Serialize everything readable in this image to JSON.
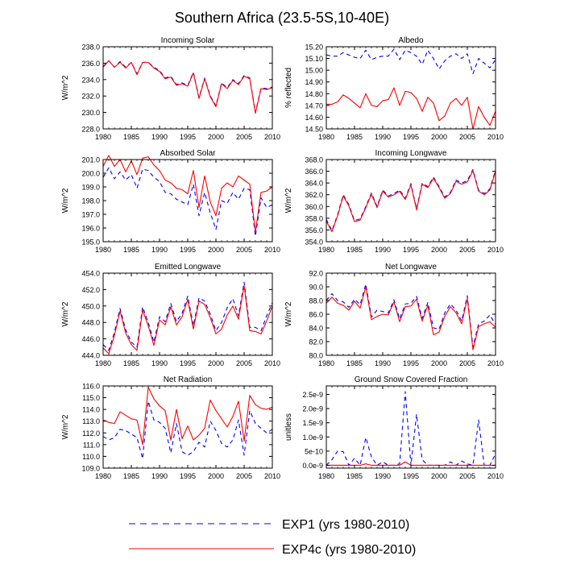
{
  "title": "Southern Africa (23.5-5S,10-40E)",
  "legend": [
    {
      "label": "EXP1 (yrs 1980-2010)",
      "color": "#0000ff",
      "dashed": true
    },
    {
      "label": "EXP4c (yrs 1980-2010)",
      "color": "#ff0000",
      "dashed": false
    }
  ],
  "chart_data": [
    {
      "type": "line",
      "title": "Incoming Solar",
      "ylabel": "W/m^2",
      "xlim": [
        1980,
        2010
      ],
      "ylim": [
        228,
        238
      ],
      "xticks": [
        1980,
        1985,
        1990,
        1995,
        2000,
        2005,
        2010
      ],
      "yticks": [
        228,
        230,
        232,
        234,
        236,
        238
      ],
      "ytick_labels": [
        "228.0",
        "230.0",
        "232.0",
        "234.0",
        "236.0",
        "238.0"
      ],
      "x": [
        1980,
        1981,
        1982,
        1983,
        1984,
        1985,
        1986,
        1987,
        1988,
        1989,
        1990,
        1991,
        1992,
        1993,
        1994,
        1995,
        1996,
        1997,
        1998,
        1999,
        2000,
        2001,
        2002,
        2003,
        2004,
        2005,
        2006,
        2007,
        2008,
        2009,
        2010
      ],
      "series": [
        {
          "name": "EXP1 (yrs 1980-2010)",
          "values": [
            235.6,
            236.3,
            235.5,
            236.2,
            235.5,
            236.1,
            234.7,
            236.1,
            236.1,
            235.5,
            235.1,
            234.2,
            234.4,
            233.4,
            233.6,
            233.3,
            234.9,
            231.8,
            234.2,
            232.0,
            230.8,
            233.6,
            233.0,
            234.0,
            233.5,
            234.5,
            234.2,
            230.0,
            233.0,
            232.9,
            233.1
          ]
        },
        {
          "name": "EXP4c (yrs 1980-2010)",
          "values": [
            235.5,
            236.3,
            235.5,
            236.1,
            235.4,
            236.1,
            234.6,
            236.1,
            236.1,
            235.4,
            235.0,
            234.1,
            234.3,
            233.3,
            233.5,
            233.2,
            234.8,
            231.7,
            234.1,
            231.9,
            230.7,
            233.5,
            232.9,
            233.9,
            233.4,
            234.4,
            234.1,
            229.9,
            232.9,
            232.8,
            233.0
          ]
        }
      ]
    },
    {
      "type": "line",
      "title": "Albedo",
      "ylabel": "% reflected",
      "xlim": [
        1980,
        2010
      ],
      "ylim": [
        14.5,
        15.2
      ],
      "xticks": [
        1980,
        1985,
        1990,
        1995,
        2000,
        2005,
        2010
      ],
      "yticks": [
        14.5,
        14.6,
        14.7,
        14.8,
        14.9,
        15.0,
        15.1,
        15.2
      ],
      "ytick_labels": [
        "14.50",
        "14.60",
        "14.70",
        "14.80",
        "14.90",
        "15.00",
        "15.10",
        "15.20"
      ],
      "x": [
        1980,
        1981,
        1982,
        1983,
        1984,
        1985,
        1986,
        1987,
        1988,
        1989,
        1990,
        1991,
        1992,
        1993,
        1994,
        1995,
        1996,
        1997,
        1998,
        1999,
        2000,
        2001,
        2002,
        2003,
        2004,
        2005,
        2006,
        2007,
        2008,
        2009,
        2010
      ],
      "series": [
        {
          "name": "EXP1 (yrs 1980-2010)",
          "values": [
            15.13,
            15.12,
            15.12,
            15.15,
            15.13,
            15.11,
            15.1,
            15.17,
            15.09,
            15.11,
            15.12,
            15.12,
            15.18,
            15.09,
            15.17,
            15.15,
            15.12,
            15.05,
            15.17,
            15.1,
            15.01,
            15.08,
            15.12,
            15.14,
            15.1,
            15.14,
            14.97,
            15.1,
            15.06,
            15.02,
            15.09
          ]
        },
        {
          "name": "EXP4c (yrs 1980-2010)",
          "values": [
            14.71,
            14.71,
            14.73,
            14.79,
            14.76,
            14.72,
            14.68,
            14.8,
            14.7,
            14.69,
            14.74,
            14.75,
            14.85,
            14.7,
            14.82,
            14.81,
            14.76,
            14.65,
            14.77,
            14.72,
            14.57,
            14.61,
            14.72,
            14.76,
            14.7,
            14.77,
            14.5,
            14.69,
            14.6,
            14.53,
            14.65
          ]
        }
      ]
    },
    {
      "type": "line",
      "title": "Absorbed Solar",
      "ylabel": "W/m^2",
      "xlim": [
        1980,
        2010
      ],
      "ylim": [
        195,
        201
      ],
      "xticks": [
        1980,
        1985,
        1990,
        1995,
        2000,
        2005,
        2010
      ],
      "yticks": [
        195,
        196,
        197,
        198,
        199,
        200,
        201
      ],
      "ytick_labels": [
        "195.0",
        "196.0",
        "197.0",
        "198.0",
        "199.0",
        "200.0",
        "201.0"
      ],
      "x": [
        1980,
        1981,
        1982,
        1983,
        1984,
        1985,
        1986,
        1987,
        1988,
        1989,
        1990,
        1991,
        1992,
        1993,
        1994,
        1995,
        1996,
        1997,
        1998,
        1999,
        2000,
        2001,
        2002,
        2003,
        2004,
        2005,
        2006,
        2007,
        2008,
        2009,
        2010
      ],
      "series": [
        {
          "name": "EXP1 (yrs 1980-2010)",
          "values": [
            199.7,
            200.4,
            199.6,
            200.1,
            199.5,
            199.9,
            198.9,
            200.3,
            200.2,
            199.7,
            199.4,
            198.6,
            198.5,
            198.1,
            197.9,
            197.7,
            199.2,
            196.9,
            198.6,
            197.1,
            195.9,
            198.0,
            197.8,
            198.6,
            198.1,
            198.9,
            198.8,
            195.4,
            198.2,
            197.5,
            197.7
          ]
        },
        {
          "name": "EXP4c (yrs 1980-2010)",
          "values": [
            200.5,
            201.3,
            200.5,
            201.0,
            200.1,
            200.9,
            199.9,
            201.1,
            201.2,
            200.6,
            200.2,
            199.5,
            199.3,
            198.9,
            198.8,
            198.5,
            200.2,
            197.5,
            199.8,
            197.9,
            196.9,
            198.9,
            199.3,
            199.0,
            199.8,
            199.5,
            199.2,
            195.7,
            198.6,
            198.7,
            199.0
          ]
        }
      ]
    },
    {
      "type": "line",
      "title": "Incoming Longwave",
      "ylabel": "W/m^2",
      "xlim": [
        1980,
        2010
      ],
      "ylim": [
        354,
        368
      ],
      "xticks": [
        1980,
        1985,
        1990,
        1995,
        2000,
        2005,
        2010
      ],
      "yticks": [
        354,
        356,
        358,
        360,
        362,
        364,
        366,
        368
      ],
      "ytick_labels": [
        "354.0",
        "356.0",
        "358.0",
        "360.0",
        "362.0",
        "364.0",
        "366.0",
        "368.0"
      ],
      "x": [
        1980,
        1981,
        1982,
        1983,
        1984,
        1985,
        1986,
        1987,
        1988,
        1989,
        1990,
        1991,
        1992,
        1993,
        1994,
        1995,
        1996,
        1997,
        1998,
        1999,
        2000,
        2001,
        2002,
        2003,
        2004,
        2005,
        2006,
        2007,
        2008,
        2009,
        2010
      ],
      "series": [
        {
          "name": "EXP1 (yrs 1980-2010)",
          "values": [
            357.8,
            355.9,
            358.6,
            362.0,
            360.3,
            357.6,
            357.9,
            360.0,
            362.3,
            360.0,
            362.8,
            361.8,
            362.2,
            362.8,
            361.4,
            363.9,
            359.6,
            364.0,
            363.4,
            365.0,
            363.4,
            361.6,
            362.4,
            364.5,
            364.0,
            364.4,
            366.3,
            362.8,
            362.2,
            363.0,
            366.2
          ]
        },
        {
          "name": "EXP4c (yrs 1980-2010)",
          "values": [
            357.5,
            355.7,
            358.4,
            361.8,
            360.1,
            357.4,
            357.7,
            359.8,
            362.1,
            359.8,
            362.6,
            361.6,
            362.0,
            362.6,
            361.2,
            363.7,
            359.4,
            363.8,
            363.2,
            364.8,
            363.2,
            361.4,
            362.2,
            364.3,
            363.8,
            364.2,
            366.1,
            362.6,
            362.0,
            362.8,
            366.0
          ]
        }
      ]
    },
    {
      "type": "line",
      "title": "Emitted Longwave",
      "ylabel": "W/m^2",
      "xlim": [
        1980,
        2010
      ],
      "ylim": [
        444,
        454
      ],
      "xticks": [
        1980,
        1985,
        1990,
        1995,
        2000,
        2005,
        2010
      ],
      "yticks": [
        444,
        446,
        448,
        450,
        452,
        454
      ],
      "ytick_labels": [
        "444.0",
        "446.0",
        "448.0",
        "450.0",
        "452.0",
        "454.0"
      ],
      "x": [
        1980,
        1981,
        1982,
        1983,
        1984,
        1985,
        1986,
        1987,
        1988,
        1989,
        1990,
        1991,
        1992,
        1993,
        1994,
        1995,
        1996,
        1997,
        1998,
        1999,
        2000,
        2001,
        2002,
        2003,
        2004,
        2005,
        2006,
        2007,
        2008,
        2009,
        2010
      ],
      "series": [
        {
          "name": "EXP1 (yrs 1980-2010)",
          "values": [
            445.3,
            444.6,
            446.8,
            449.7,
            447.1,
            445.6,
            445.0,
            449.9,
            448.0,
            445.6,
            448.7,
            448.1,
            450.3,
            448.1,
            449.1,
            451.2,
            447.6,
            451.0,
            450.6,
            449.0,
            447.0,
            448.0,
            449.8,
            450.9,
            448.8,
            452.9,
            447.4,
            447.4,
            447.0,
            448.8,
            450.4
          ]
        },
        {
          "name": "EXP4c (yrs 1980-2010)",
          "values": [
            444.9,
            444.2,
            446.4,
            449.4,
            446.7,
            445.3,
            444.6,
            449.5,
            447.6,
            445.2,
            448.3,
            447.7,
            449.9,
            447.7,
            448.7,
            450.8,
            447.2,
            450.6,
            450.2,
            448.6,
            446.6,
            447.2,
            448.9,
            450.0,
            448.4,
            452.5,
            447.0,
            446.9,
            446.6,
            448.2,
            450.0
          ]
        }
      ]
    },
    {
      "type": "line",
      "title": "Net Longwave",
      "ylabel": "W/m^2",
      "xlim": [
        1980,
        2010
      ],
      "ylim": [
        80,
        92
      ],
      "xticks": [
        1980,
        1985,
        1990,
        1995,
        2000,
        2005,
        2010
      ],
      "yticks": [
        80,
        82,
        84,
        86,
        88,
        90,
        92
      ],
      "ytick_labels": [
        "80.0",
        "82.0",
        "84.0",
        "86.0",
        "88.0",
        "90.0",
        "92.0"
      ],
      "x": [
        1980,
        1981,
        1982,
        1983,
        1984,
        1985,
        1986,
        1987,
        1988,
        1989,
        1990,
        1991,
        1992,
        1993,
        1994,
        1995,
        1996,
        1997,
        1998,
        1999,
        2000,
        2001,
        2002,
        2003,
        2004,
        2005,
        2006,
        2007,
        2008,
        2009,
        2010
      ],
      "series": [
        {
          "name": "EXP1 (yrs 1980-2010)",
          "values": [
            88.0,
            89.0,
            88.0,
            87.8,
            87.0,
            88.2,
            87.4,
            90.4,
            85.6,
            86.6,
            86.4,
            86.2,
            88.1,
            85.3,
            87.5,
            87.6,
            88.6,
            85.4,
            87.7,
            84.0,
            83.8,
            86.2,
            87.5,
            86.6,
            85.0,
            88.7,
            81.2,
            84.6,
            85.0,
            85.9,
            84.5
          ]
        },
        {
          "name": "EXP4c (yrs 1980-2010)",
          "values": [
            87.6,
            88.5,
            87.6,
            87.3,
            86.6,
            87.9,
            86.9,
            90.0,
            85.2,
            85.7,
            86.0,
            85.9,
            87.8,
            84.9,
            87.1,
            87.2,
            88.2,
            85.0,
            87.3,
            83.0,
            83.4,
            85.7,
            87.1,
            86.2,
            84.6,
            88.3,
            80.8,
            84.2,
            84.6,
            84.9,
            84.1
          ]
        }
      ]
    },
    {
      "type": "line",
      "title": "Net Radiation",
      "ylabel": "W/m^2",
      "xlim": [
        1980,
        2010
      ],
      "ylim": [
        109,
        116
      ],
      "xticks": [
        1980,
        1985,
        1990,
        1995,
        2000,
        2005,
        2010
      ],
      "yticks": [
        109,
        110,
        111,
        112,
        113,
        114,
        115,
        116
      ],
      "ytick_labels": [
        "109.0",
        "110.0",
        "111.0",
        "112.0",
        "113.0",
        "114.0",
        "115.0",
        "116.0"
      ],
      "x": [
        1980,
        1981,
        1982,
        1983,
        1984,
        1985,
        1986,
        1987,
        1988,
        1989,
        1990,
        1991,
        1992,
        1993,
        1994,
        1995,
        1996,
        1997,
        1998,
        1999,
        2000,
        2001,
        2002,
        2003,
        2004,
        2005,
        2006,
        2007,
        2008,
        2009,
        2010
      ],
      "series": [
        {
          "name": "EXP1 (yrs 1980-2010)",
          "values": [
            111.7,
            111.4,
            111.6,
            112.3,
            112.2,
            111.9,
            111.6,
            109.8,
            114.7,
            113.1,
            112.9,
            112.4,
            110.3,
            112.8,
            110.4,
            110.1,
            110.4,
            111.2,
            110.8,
            113.0,
            112.2,
            111.1,
            110.8,
            111.4,
            113.1,
            110.1,
            113.9,
            112.8,
            112.4,
            112.0,
            112.3
          ]
        },
        {
          "name": "EXP4c (yrs 1980-2010)",
          "values": [
            113.1,
            112.9,
            112.8,
            113.8,
            113.5,
            113.2,
            113.1,
            111.0,
            115.9,
            114.9,
            114.3,
            113.9,
            111.4,
            114.0,
            111.5,
            112.6,
            111.4,
            111.8,
            112.4,
            114.8,
            113.9,
            113.2,
            112.5,
            113.4,
            114.7,
            111.3,
            115.2,
            114.4,
            114.1,
            114.0,
            114.2
          ]
        }
      ]
    },
    {
      "type": "line",
      "title": "Ground Snow Covered Fraction",
      "ylabel": "unitless",
      "xlim": [
        1980,
        2010
      ],
      "ylim": [
        -1e-10,
        2.8e-09
      ],
      "xticks": [
        1980,
        1985,
        1990,
        1995,
        2000,
        2005,
        2010
      ],
      "yticks": [
        0,
        5e-10,
        1e-09,
        1.5e-09,
        2e-09,
        2.5e-09
      ],
      "ytick_labels": [
        "0.0e-9",
        "5e-10",
        "1.0e-9",
        "1.5e-9",
        "2.0e-9",
        "2.5e-9"
      ],
      "x": [
        1980,
        1981,
        1982,
        1983,
        1984,
        1985,
        1986,
        1987,
        1988,
        1989,
        1990,
        1991,
        1992,
        1993,
        1994,
        1995,
        1996,
        1997,
        1998,
        1999,
        2000,
        2001,
        2002,
        2003,
        2004,
        2005,
        2006,
        2007,
        2008,
        2009,
        2010
      ],
      "series": [
        {
          "name": "EXP1 (yrs 1980-2010)",
          "values": [
            0.0,
            2e-10,
            5e-10,
            4.8e-10,
            0.0,
            2.5e-10,
            0.0,
            9.8e-10,
            3e-10,
            0.0,
            1.2e-10,
            0.0,
            0.0,
            5e-11,
            2.6e-09,
            0.0,
            1.8e-09,
            2e-10,
            0.0,
            0.0,
            0.0,
            0.0,
            1.2e-10,
            0.0,
            1.5e-10,
            5e-11,
            0.0,
            1.6e-09,
            0.0,
            0.0,
            4e-10
          ]
        },
        {
          "name": "EXP4c (yrs 1980-2010)",
          "values": [
            0.0,
            0.0,
            0.0,
            0.0,
            0.0,
            0.0,
            0.0,
            5e-11,
            0.0,
            0.0,
            0.0,
            0.0,
            0.0,
            0.0,
            1.2e-10,
            0.0,
            0.0,
            0.0,
            0.0,
            0.0,
            0.0,
            0.0,
            0.0,
            0.0,
            0.0,
            0.0,
            0.0,
            0.0,
            0.0,
            0.0,
            0.0
          ]
        }
      ]
    }
  ]
}
